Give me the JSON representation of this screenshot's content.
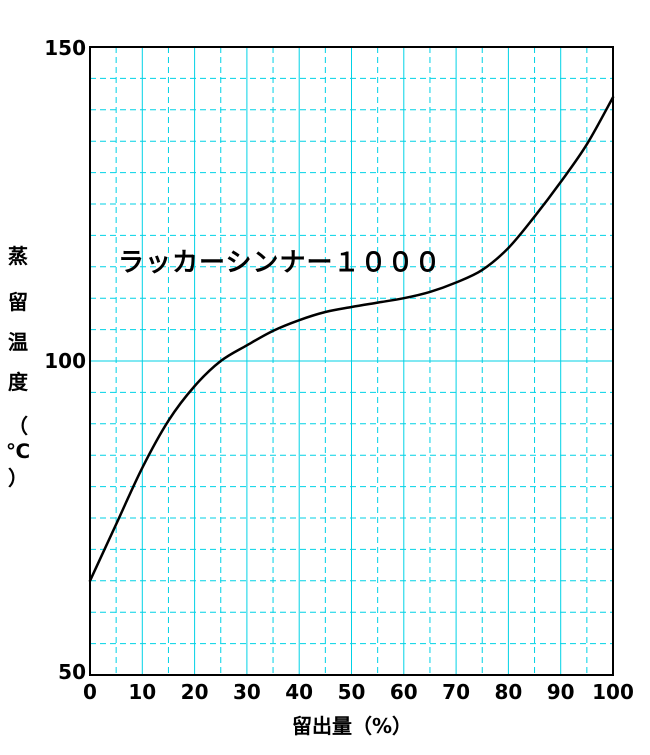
{
  "chart_data": {
    "type": "line",
    "title": "",
    "xlabel": "留出量（%）",
    "ylabel": [
      "蒸",
      "留",
      "温",
      "度",
      "（",
      "℃",
      "）"
    ],
    "xlim": [
      0,
      100
    ],
    "ylim": [
      50,
      150
    ],
    "x_ticks": [
      0,
      10,
      20,
      30,
      40,
      50,
      60,
      70,
      80,
      90,
      100
    ],
    "x_tick_labels": [
      "0",
      "10",
      "20",
      "30",
      "40",
      "50",
      "60",
      "70",
      "80",
      "90",
      "100"
    ],
    "y_tick_labels": [
      {
        "value": 150,
        "label": "150"
      },
      {
        "value": 100,
        "label": "100"
      },
      {
        "value": 50,
        "label": "50"
      }
    ],
    "grid": {
      "major_x": [
        0,
        10,
        20,
        30,
        40,
        50,
        60,
        70,
        80,
        90,
        100
      ],
      "minor_x": [
        5,
        15,
        25,
        35,
        45,
        55,
        65,
        75,
        85,
        95
      ],
      "major_y": [
        50,
        100,
        150
      ],
      "minor_y": [
        55,
        60,
        65,
        70,
        75,
        80,
        85,
        90,
        95,
        105,
        110,
        115,
        120,
        125,
        130,
        135,
        140,
        145
      ]
    },
    "grid_color": "#00d2e6",
    "line_color": "#000000",
    "series": [
      {
        "name": "ラッカーシンナー１０００",
        "x": [
          0,
          5,
          10,
          15,
          20,
          25,
          30,
          35,
          40,
          45,
          50,
          55,
          60,
          65,
          70,
          75,
          80,
          85,
          90,
          95,
          100
        ],
        "y": [
          65,
          74,
          83,
          90.5,
          96,
          100,
          102.5,
          104.8,
          106.5,
          107.8,
          108.6,
          109.3,
          110,
          111,
          112.5,
          114.5,
          118,
          123,
          128.5,
          134.5,
          142
        ]
      }
    ]
  }
}
